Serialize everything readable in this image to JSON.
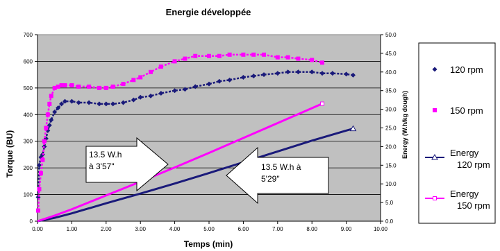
{
  "chart_data": {
    "type": "scatter",
    "title": "Energie développée",
    "xlabel": "Temps (min)",
    "ylabel": "Torque (BU)",
    "y2label": "Energy (W.h/kg dough)",
    "xlim": [
      0,
      10
    ],
    "ylim": [
      0,
      700
    ],
    "y2lim": [
      0,
      50
    ],
    "xticks": [
      "0.00",
      "1.00",
      "2.00",
      "3.00",
      "4.00",
      "5.00",
      "6.00",
      "7.00",
      "8.00",
      "9.00",
      "10.00"
    ],
    "yticks": [
      "0",
      "100",
      "200",
      "300",
      "400",
      "500",
      "600",
      "700"
    ],
    "y2ticks": [
      "0.0",
      "5.0",
      "10.0",
      "15.0",
      "20.0",
      "25.0",
      "30.0",
      "35.0",
      "40.0",
      "45.0",
      "50.0"
    ],
    "grid": true,
    "legend_position": "right",
    "series": [
      {
        "name": "120 rpm",
        "axis": "left",
        "color": "#1a1a7a",
        "marker": "diamond",
        "x": [
          0.02,
          0.05,
          0.1,
          0.15,
          0.2,
          0.25,
          0.3,
          0.35,
          0.4,
          0.5,
          0.6,
          0.7,
          0.8,
          1.0,
          1.2,
          1.5,
          1.8,
          2.0,
          2.2,
          2.5,
          2.8,
          3.0,
          3.3,
          3.6,
          4.0,
          4.3,
          4.6,
          5.0,
          5.3,
          5.6,
          6.0,
          6.3,
          6.6,
          7.0,
          7.3,
          7.6,
          8.0,
          8.3,
          8.6,
          9.0,
          9.2
        ],
        "y": [
          90,
          210,
          240,
          250,
          280,
          310,
          340,
          360,
          380,
          410,
          425,
          440,
          450,
          450,
          445,
          445,
          440,
          440,
          440,
          445,
          455,
          465,
          470,
          480,
          490,
          495,
          505,
          515,
          525,
          530,
          540,
          545,
          550,
          555,
          560,
          560,
          560,
          555,
          555,
          552,
          548
        ]
      },
      {
        "name": "150 rpm",
        "axis": "left",
        "color": "#ff00ff",
        "marker": "square",
        "x": [
          0.02,
          0.05,
          0.1,
          0.15,
          0.2,
          0.25,
          0.3,
          0.35,
          0.4,
          0.5,
          0.6,
          0.7,
          0.8,
          1.0,
          1.2,
          1.5,
          1.8,
          2.0,
          2.2,
          2.5,
          2.8,
          3.0,
          3.3,
          3.6,
          4.0,
          4.3,
          4.6,
          5.0,
          5.3,
          5.6,
          6.0,
          6.3,
          6.6,
          7.0,
          7.3,
          7.6,
          8.0,
          8.3
        ],
        "y": [
          40,
          120,
          180,
          230,
          300,
          350,
          400,
          440,
          470,
          500,
          505,
          510,
          510,
          510,
          505,
          505,
          500,
          500,
          505,
          515,
          530,
          540,
          560,
          580,
          600,
          610,
          620,
          620,
          620,
          625,
          625,
          625,
          625,
          615,
          615,
          610,
          605,
          595
        ]
      },
      {
        "name": "Energy 120 rpm",
        "axis": "right",
        "color": "#1a1a7a",
        "marker": "triangle",
        "x": [
          0,
          0.5,
          1,
          2,
          3,
          4,
          5,
          6,
          7,
          8,
          9,
          9.2
        ],
        "y": [
          0,
          0.9,
          2.1,
          4.8,
          7.4,
          10.1,
          12.9,
          15.8,
          18.7,
          21.6,
          24.3,
          24.8
        ]
      },
      {
        "name": "Energy 150 rpm",
        "axis": "right",
        "color": "#ff00ff",
        "marker": "square-small",
        "x": [
          0,
          0.5,
          1,
          2,
          3,
          4,
          5,
          6,
          7,
          8,
          8.3
        ],
        "y": [
          0,
          1.5,
          3.2,
          6.9,
          10.6,
          14.4,
          18.3,
          22.3,
          26.3,
          30.3,
          31.5
        ]
      }
    ],
    "annotations": [
      {
        "text": [
          "13.5 W.h",
          "à 3'57\""
        ],
        "arrow": "right"
      },
      {
        "text": [
          "13.5 W.h à",
          "5'29\""
        ],
        "arrow": "left"
      }
    ]
  }
}
